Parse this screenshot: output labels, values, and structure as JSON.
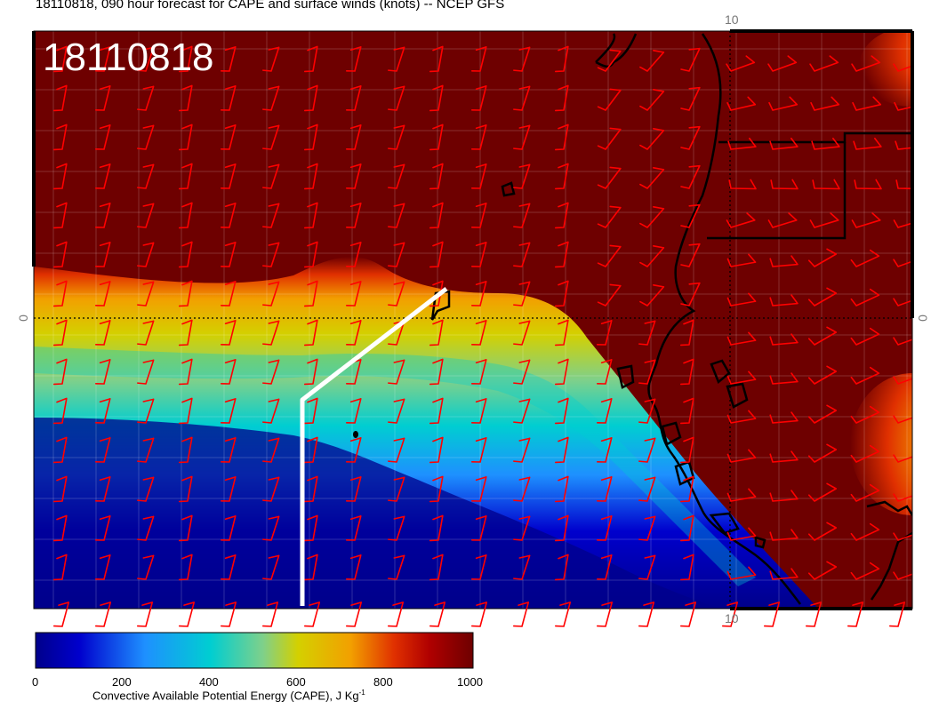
{
  "title": "18110818, 090 hour forecast for CAPE and surface winds (knots) -- NCEP GFS",
  "timestamp": "18110818",
  "ticks": {
    "top": "10",
    "bottom": "10",
    "left": "0",
    "right": "0"
  },
  "colorbar": {
    "labels": [
      "0",
      "200",
      "400",
      "600",
      "800",
      "1000"
    ],
    "title": "Convective Available Potential Energy (CAPE), J Kg",
    "title_sup": "-1",
    "colors": [
      "#00008b",
      "#0000cd",
      "#1e90ff",
      "#00ced1",
      "#7fd08a",
      "#d4d000",
      "#f2a000",
      "#e03000",
      "#b00000",
      "#6e0000"
    ]
  },
  "colors": {
    "cape_high": "#6e0000",
    "wind_barb": "#ff0000",
    "coastline": "#000000",
    "path": "#ffffff"
  },
  "icons": {
    "wind": "wind-barb-icon"
  }
}
